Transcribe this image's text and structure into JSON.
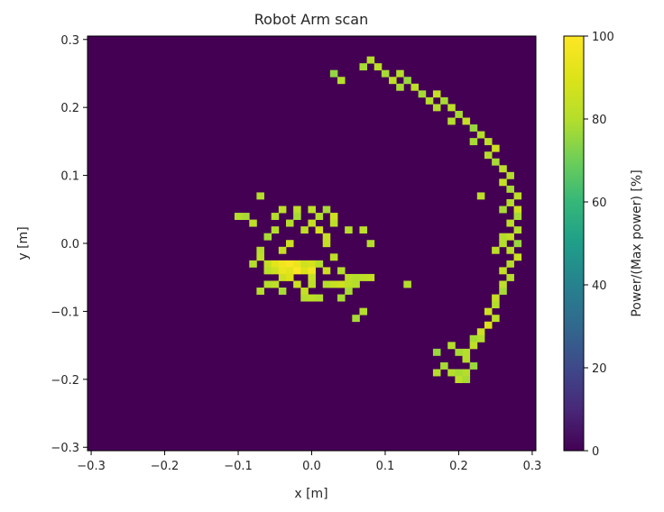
{
  "chart_data": {
    "type": "heatmap",
    "title": "Robot Arm scan",
    "xlabel": "x [m]",
    "ylabel": "y [m]",
    "xlim": [
      -0.305,
      0.305
    ],
    "ylim": [
      -0.305,
      0.305
    ],
    "x_ticks": [
      -0.3,
      -0.2,
      -0.1,
      0.0,
      0.1,
      0.2,
      0.3
    ],
    "y_ticks": [
      -0.3,
      -0.2,
      -0.1,
      0.0,
      0.1,
      0.2,
      0.3
    ],
    "x_tick_labels": [
      "−0.3",
      "−0.2",
      "−0.1",
      "0.0",
      "0.1",
      "0.2",
      "0.3"
    ],
    "y_tick_labels": [
      "−0.3",
      "−0.2",
      "−0.1",
      "0.0",
      "0.1",
      "0.2",
      "0.3"
    ],
    "cell_size": 0.01,
    "background_value": 0,
    "colormap": "viridis",
    "colorbar": {
      "label": "Power/(Max power) [%]",
      "range": [
        0,
        100
      ],
      "ticks": [
        0,
        20,
        40,
        60,
        80,
        100
      ],
      "tick_labels": [
        "0",
        "20",
        "40",
        "60",
        "80",
        "100"
      ]
    },
    "grid": false,
    "cells": [
      [
        0.08,
        0.27,
        80
      ],
      [
        0.07,
        0.26,
        78
      ],
      [
        0.09,
        0.26,
        82
      ],
      [
        0.03,
        0.25,
        75
      ],
      [
        0.04,
        0.24,
        80
      ],
      [
        0.1,
        0.25,
        78
      ],
      [
        0.11,
        0.24,
        82
      ],
      [
        0.12,
        0.25,
        80
      ],
      [
        0.13,
        0.24,
        76
      ],
      [
        0.12,
        0.23,
        78
      ],
      [
        0.14,
        0.23,
        82
      ],
      [
        0.15,
        0.22,
        78
      ],
      [
        0.16,
        0.21,
        80
      ],
      [
        0.17,
        0.22,
        84
      ],
      [
        0.18,
        0.21,
        78
      ],
      [
        0.17,
        0.2,
        80
      ],
      [
        0.19,
        0.2,
        82
      ],
      [
        0.2,
        0.19,
        78
      ],
      [
        0.19,
        0.18,
        80
      ],
      [
        0.21,
        0.18,
        84
      ],
      [
        0.22,
        0.17,
        76
      ],
      [
        0.23,
        0.16,
        80
      ],
      [
        0.22,
        0.15,
        78
      ],
      [
        0.24,
        0.15,
        82
      ],
      [
        0.25,
        0.14,
        86
      ],
      [
        0.24,
        0.13,
        80
      ],
      [
        0.25,
        0.12,
        78
      ],
      [
        0.26,
        0.11,
        82
      ],
      [
        0.27,
        0.1,
        80
      ],
      [
        0.26,
        0.09,
        84
      ],
      [
        0.27,
        0.08,
        78
      ],
      [
        0.28,
        0.07,
        82
      ],
      [
        0.27,
        0.06,
        80
      ],
      [
        0.28,
        0.05,
        86
      ],
      [
        0.28,
        0.04,
        78
      ],
      [
        0.27,
        0.03,
        82
      ],
      [
        0.28,
        0.02,
        80
      ],
      [
        0.27,
        0.01,
        84
      ],
      [
        0.26,
        0.0,
        80
      ],
      [
        0.28,
        0.0,
        76
      ],
      [
        0.27,
        -0.01,
        82
      ],
      [
        0.28,
        -0.02,
        86
      ],
      [
        0.27,
        -0.03,
        80
      ],
      [
        0.26,
        -0.04,
        84
      ],
      [
        0.27,
        -0.05,
        80
      ],
      [
        0.26,
        -0.06,
        82
      ],
      [
        0.26,
        -0.07,
        78
      ],
      [
        0.25,
        -0.08,
        84
      ],
      [
        0.25,
        -0.09,
        80
      ],
      [
        0.24,
        -0.1,
        86
      ],
      [
        0.25,
        -0.11,
        82
      ],
      [
        0.24,
        -0.12,
        90
      ],
      [
        0.23,
        -0.13,
        86
      ],
      [
        0.23,
        -0.14,
        80
      ],
      [
        0.22,
        -0.14,
        78
      ],
      [
        0.22,
        -0.15,
        82
      ],
      [
        0.21,
        -0.16,
        80
      ],
      [
        0.2,
        -0.16,
        78
      ],
      [
        0.17,
        -0.16,
        76
      ],
      [
        0.19,
        -0.15,
        80
      ],
      [
        0.18,
        -0.18,
        78
      ],
      [
        0.19,
        -0.19,
        80
      ],
      [
        0.2,
        -0.19,
        78
      ],
      [
        0.21,
        -0.19,
        80
      ],
      [
        0.2,
        -0.2,
        82
      ],
      [
        0.21,
        -0.2,
        78
      ],
      [
        0.17,
        -0.19,
        80
      ],
      [
        0.22,
        -0.18,
        76
      ],
      [
        0.23,
        0.07,
        82
      ],
      [
        0.26,
        0.05,
        78
      ],
      [
        0.26,
        0.01,
        80
      ],
      [
        0.25,
        -0.01,
        82
      ],
      [
        0.21,
        -0.17,
        80
      ],
      [
        -0.07,
        0.07,
        80
      ],
      [
        -0.09,
        0.04,
        78
      ],
      [
        -0.08,
        0.03,
        82
      ],
      [
        -0.05,
        0.04,
        80
      ],
      [
        -0.04,
        0.05,
        82
      ],
      [
        -0.02,
        0.04,
        78
      ],
      [
        0.0,
        0.05,
        82
      ],
      [
        0.01,
        0.04,
        80
      ],
      [
        0.02,
        0.05,
        78
      ],
      [
        0.03,
        0.04,
        86
      ],
      [
        0.03,
        0.03,
        82
      ],
      [
        -0.03,
        0.03,
        80
      ],
      [
        0.0,
        0.03,
        84
      ],
      [
        -0.01,
        0.02,
        82
      ],
      [
        0.05,
        0.02,
        80
      ],
      [
        0.07,
        0.02,
        82
      ],
      [
        -0.06,
        0.01,
        78
      ],
      [
        0.02,
        0.01,
        84
      ],
      [
        -0.03,
        0.0,
        86
      ],
      [
        0.08,
        0.0,
        80
      ],
      [
        -0.07,
        -0.01,
        80
      ],
      [
        -0.04,
        -0.01,
        84
      ],
      [
        0.03,
        -0.02,
        82
      ],
      [
        -0.07,
        -0.02,
        82
      ],
      [
        -0.08,
        -0.03,
        80
      ],
      [
        -0.06,
        -0.03,
        84
      ],
      [
        -0.05,
        -0.03,
        92
      ],
      [
        -0.04,
        -0.03,
        96
      ],
      [
        -0.03,
        -0.03,
        98
      ],
      [
        -0.02,
        -0.03,
        94
      ],
      [
        -0.01,
        -0.03,
        86
      ],
      [
        0.0,
        -0.03,
        88
      ],
      [
        0.01,
        -0.03,
        80
      ],
      [
        -0.06,
        -0.04,
        82
      ],
      [
        -0.05,
        -0.04,
        86
      ],
      [
        -0.04,
        -0.04,
        94
      ],
      [
        -0.03,
        -0.04,
        92
      ],
      [
        -0.02,
        -0.04,
        100
      ],
      [
        -0.01,
        -0.04,
        90
      ],
      [
        0.0,
        -0.04,
        96
      ],
      [
        0.02,
        -0.04,
        86
      ],
      [
        0.04,
        -0.04,
        80
      ],
      [
        0.05,
        -0.05,
        82
      ],
      [
        -0.04,
        -0.05,
        86
      ],
      [
        -0.03,
        -0.05,
        90
      ],
      [
        0.0,
        -0.05,
        84
      ],
      [
        0.06,
        -0.05,
        80
      ],
      [
        0.07,
        -0.05,
        82
      ],
      [
        0.08,
        -0.05,
        84
      ],
      [
        -0.06,
        -0.06,
        80
      ],
      [
        -0.05,
        -0.06,
        82
      ],
      [
        -0.02,
        -0.06,
        86
      ],
      [
        0.0,
        -0.06,
        82
      ],
      [
        0.02,
        -0.06,
        80
      ],
      [
        0.03,
        -0.06,
        84
      ],
      [
        0.04,
        -0.06,
        86
      ],
      [
        0.05,
        -0.06,
        82
      ],
      [
        0.06,
        -0.06,
        80
      ],
      [
        0.13,
        -0.06,
        80
      ],
      [
        -0.07,
        -0.07,
        80
      ],
      [
        -0.04,
        -0.07,
        78
      ],
      [
        0.05,
        -0.07,
        78
      ],
      [
        -0.1,
        0.04,
        80
      ],
      [
        0.07,
        -0.1,
        80
      ],
      [
        0.06,
        -0.11,
        78
      ],
      [
        -0.02,
        0.05,
        82
      ],
      [
        0.04,
        -0.08,
        78
      ],
      [
        -0.01,
        -0.08,
        80
      ],
      [
        0.0,
        -0.08,
        82
      ],
      [
        0.01,
        -0.08,
        80
      ],
      [
        -0.01,
        -0.07,
        84
      ],
      [
        0.01,
        0.02,
        88
      ],
      [
        0.02,
        0.0,
        84
      ],
      [
        -0.05,
        0.02,
        80
      ]
    ]
  }
}
